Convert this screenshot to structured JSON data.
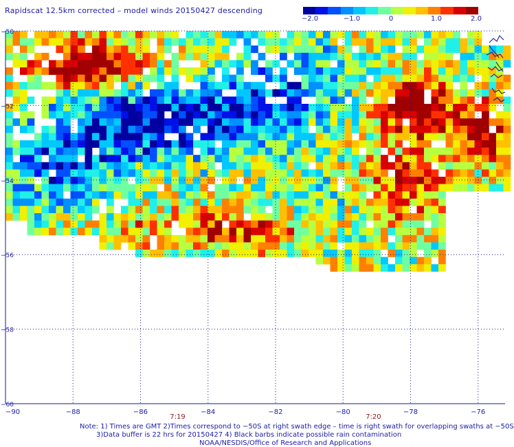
{
  "title": "Rapidscat 12.5km corrected – model winds 20150427 descending",
  "colorbar": {
    "labels": [
      "−2.0",
      "−1.0",
      "0",
      "1.0",
      "2.0"
    ],
    "values": [
      -2.0,
      -1.0,
      0,
      1.0,
      2.0
    ],
    "colors": [
      "#0000a0",
      "#0010e8",
      "#0050ff",
      "#0090ff",
      "#00c8ff",
      "#20f0e8",
      "#70ffa0",
      "#b8ff40",
      "#f0f000",
      "#ffc000",
      "#ff8000",
      "#ff3000",
      "#d80000",
      "#a00000"
    ]
  },
  "map": {
    "lon_ticks": [
      "−90",
      "−88",
      "−86",
      "−84",
      "−82",
      "−80",
      "−78",
      "−76"
    ],
    "lon_values": [
      -90,
      -88,
      -86,
      -84,
      -82,
      -80,
      -78,
      -76
    ],
    "lat_ticks": [
      "−50",
      "−52",
      "−54",
      "−56",
      "−58",
      "−60"
    ],
    "lat_values": [
      -50,
      -52,
      -54,
      -56,
      -58,
      -60
    ],
    "lon_range": [
      -90,
      -75.2
    ],
    "lat_range": [
      -60,
      -50
    ],
    "times": [
      {
        "label": "7:19",
        "lon": -84.9
      },
      {
        "label": "7:20",
        "lon": -79.1
      }
    ]
  },
  "notes": [
    "Note: 1) Times are GMT 2)Times correspond to −50S at right swath edge – time is right swath for overlapping swaths at −50S",
    "3)Data buffer is 22 hrs for 20150427 4) Black barbs indicate possible rain contamination",
    "NOAA/NESDIS/Office of Research and Applications"
  ]
}
